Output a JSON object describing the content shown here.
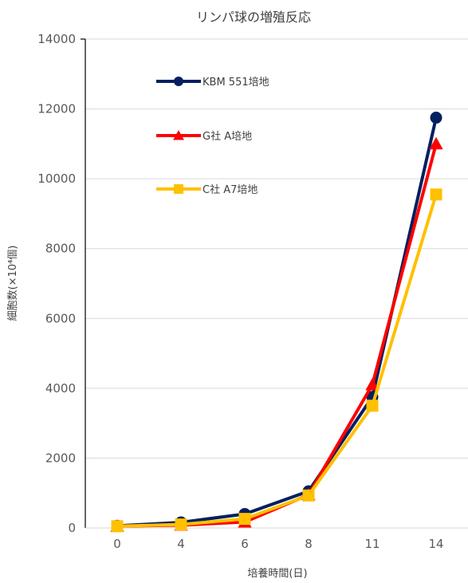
{
  "chart_data": {
    "type": "line",
    "title": "リンパ球の増殖反応",
    "xlabel": "培養時間(日)",
    "ylabel": "細胞数(×10⁴個)",
    "categories": [
      "0",
      "4",
      "6",
      "8",
      "11",
      "14"
    ],
    "ylim": [
      0,
      14000
    ],
    "yticks": [
      "0",
      "2000",
      "4000",
      "6000",
      "8000",
      "10000",
      "12000",
      "14000"
    ],
    "grid": true,
    "legend_position": "top-left",
    "series": [
      {
        "name": "KBM 551培地",
        "color": "#002060",
        "marker": "circle",
        "values": [
          60,
          160,
          400,
          1050,
          3750,
          11750
        ]
      },
      {
        "name": "G社 A培地",
        "color": "#ff0000",
        "marker": "triangle",
        "values": [
          50,
          80,
          170,
          950,
          4100,
          11000
        ]
      },
      {
        "name": "C社 A7培地",
        "color": "#ffc000",
        "marker": "square",
        "values": [
          50,
          100,
          260,
          930,
          3500,
          9550
        ]
      }
    ]
  }
}
